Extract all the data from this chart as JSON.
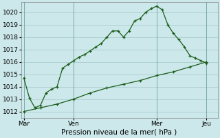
{
  "title": "Pression niveau de la mer( hPa )",
  "bg_color": "#cce8ea",
  "grid_color": "#aacccc",
  "line_color": "#1a5c1a",
  "ylim": [
    1011.5,
    1020.8
  ],
  "yticks": [
    1012,
    1013,
    1014,
    1015,
    1016,
    1017,
    1018,
    1019,
    1020
  ],
  "xtick_labels": [
    "Mar",
    "Ven",
    "Mer",
    "Jeu"
  ],
  "xtick_positions": [
    0,
    9,
    24,
    33
  ],
  "vline_positions": [
    0,
    9,
    24,
    33
  ],
  "series1_x": [
    0,
    1,
    2,
    3,
    4,
    5,
    6,
    7,
    8,
    9,
    10,
    11,
    12,
    13,
    14,
    15,
    16,
    17,
    18,
    19,
    20,
    21,
    22,
    23,
    24,
    25,
    26,
    27,
    28,
    29,
    30,
    31,
    32,
    33
  ],
  "series1_y": [
    1014.7,
    1013.1,
    1012.3,
    1012.5,
    1013.5,
    1013.8,
    1014.0,
    1015.5,
    1015.8,
    1016.1,
    1016.4,
    1016.6,
    1016.9,
    1017.2,
    1017.5,
    1018.0,
    1018.5,
    1018.5,
    1018.0,
    1018.5,
    1019.3,
    1019.5,
    1020.0,
    1020.3,
    1020.5,
    1020.2,
    1019.0,
    1018.3,
    1017.8,
    1017.2,
    1016.5,
    1016.3,
    1016.1,
    1015.9
  ],
  "series2_x": [
    0,
    3,
    6,
    9,
    12,
    15,
    18,
    21,
    24,
    27,
    30,
    33
  ],
  "series2_y": [
    1012.0,
    1012.3,
    1012.6,
    1013.0,
    1013.5,
    1013.9,
    1014.2,
    1014.5,
    1014.9,
    1015.2,
    1015.6,
    1016.0
  ]
}
